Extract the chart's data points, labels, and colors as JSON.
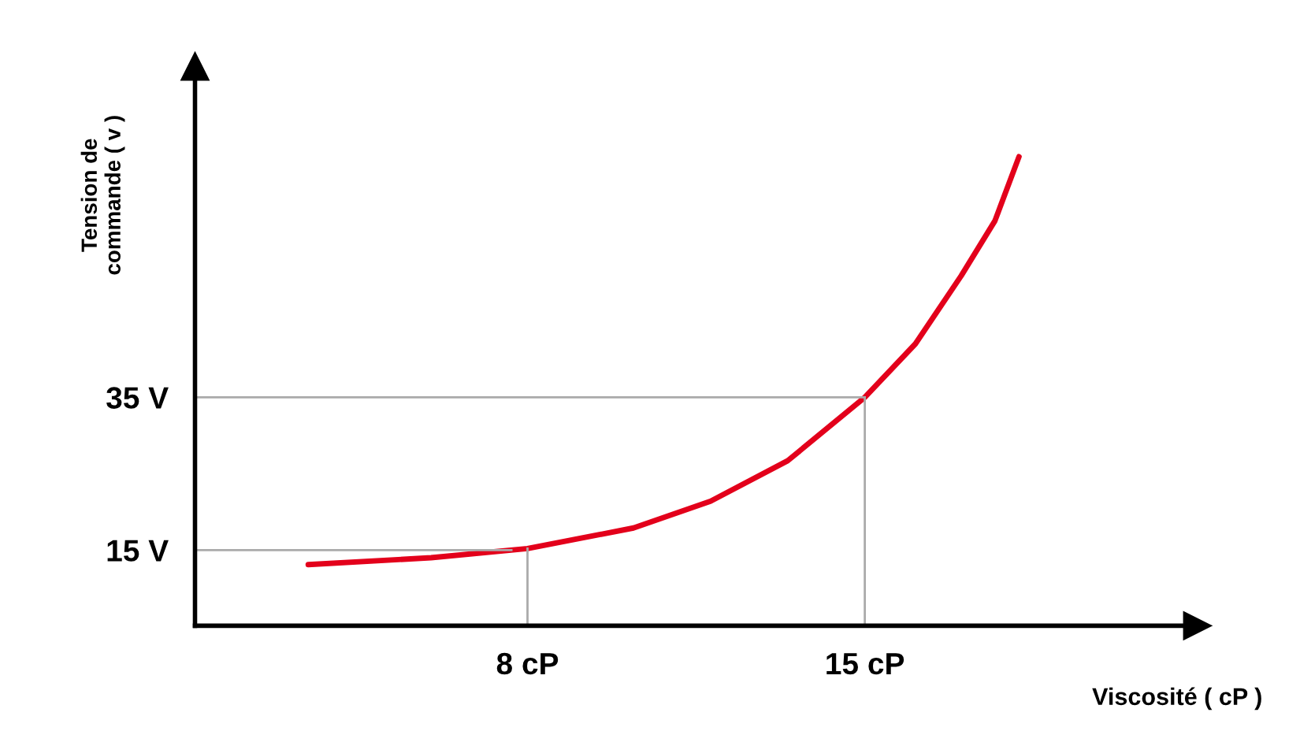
{
  "chart_data": {
    "type": "line",
    "xlabel": "Viscosité ( cP )",
    "ylabel": "Tension de\ncommande ( v )",
    "x": [
      3.45,
      6,
      8,
      10.2,
      11.8,
      13.4,
      15,
      16.05,
      17,
      17.7,
      18.2
    ],
    "series": [
      {
        "color": "#e3001b",
        "values": [
          13.1,
          14,
          15.2,
          17.9,
          21.4,
          26.7,
          35,
          42,
          50.9,
          58.1,
          66.5
        ]
      }
    ],
    "xlim": [
      1.1,
      21.9
    ],
    "ylim": [
      5.1,
      78.3
    ],
    "xticks": [
      {
        "value": 8,
        "label": "8 cP"
      },
      {
        "value": 15,
        "label": "15 cP"
      }
    ],
    "yticks": [
      {
        "value": 15,
        "label": "15 V"
      },
      {
        "value": 35,
        "label": "35 V"
      }
    ],
    "ref_lines": [
      {
        "axis": "x",
        "value": 8,
        "color": "#aaaaaa"
      },
      {
        "axis": "x",
        "value": 15,
        "color": "#aaaaaa"
      },
      {
        "axis": "y",
        "value": 15,
        "color": "#aaaaaa"
      },
      {
        "axis": "y",
        "value": 35,
        "color": "#aaaaaa"
      }
    ],
    "grid": false,
    "legend": false,
    "marker": "none",
    "line_style": "solid"
  }
}
